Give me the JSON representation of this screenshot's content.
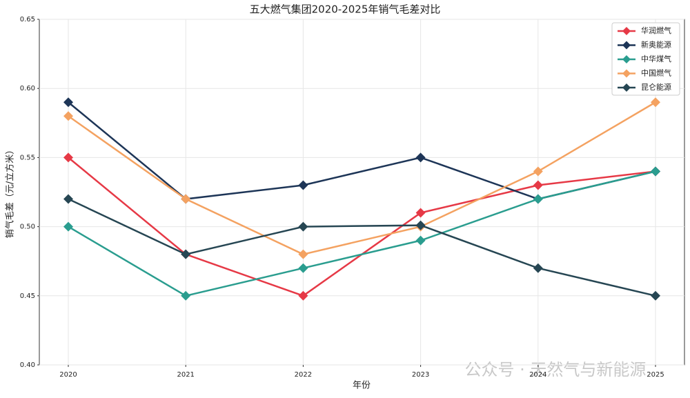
{
  "chart_data": {
    "type": "line",
    "title": "五大燃气集团2020-2025年销气毛差对比",
    "x_label": "年份",
    "y_label": "销气毛差（元/立方米）",
    "categories": [
      "2020",
      "2021",
      "2022",
      "2023",
      "2024",
      "2025"
    ],
    "series": [
      {
        "name": "华润燃气",
        "color": "#e63946",
        "values": [
          0.55,
          0.48,
          0.45,
          0.51,
          0.53,
          0.54
        ]
      },
      {
        "name": "新奥能源",
        "color": "#1d3557",
        "values": [
          0.59,
          0.52,
          0.53,
          0.55,
          0.52,
          0.54
        ]
      },
      {
        "name": "中华煤气",
        "color": "#2a9d8f",
        "values": [
          0.5,
          0.45,
          0.47,
          0.49,
          0.52,
          0.54
        ]
      },
      {
        "name": "中国燃气",
        "color": "#f4a261",
        "values": [
          0.58,
          0.52,
          0.48,
          0.5,
          0.54,
          0.59
        ]
      },
      {
        "name": "昆仑能源",
        "color": "#264653",
        "values": [
          0.52,
          0.48,
          0.5,
          0.501,
          0.47,
          0.45
        ]
      }
    ],
    "ylim": [
      0.4,
      0.65
    ],
    "yticks": [
      {
        "value": 0.4,
        "label": "0.40"
      },
      0.45,
      {
        "value": 0.5,
        "label": "0.50"
      },
      0.55,
      {
        "value": 0.6,
        "label": "0.60"
      },
      0.65
    ],
    "grid": true,
    "legend": "upper-right",
    "watermark": "公众号 · 天然气与新能源"
  }
}
